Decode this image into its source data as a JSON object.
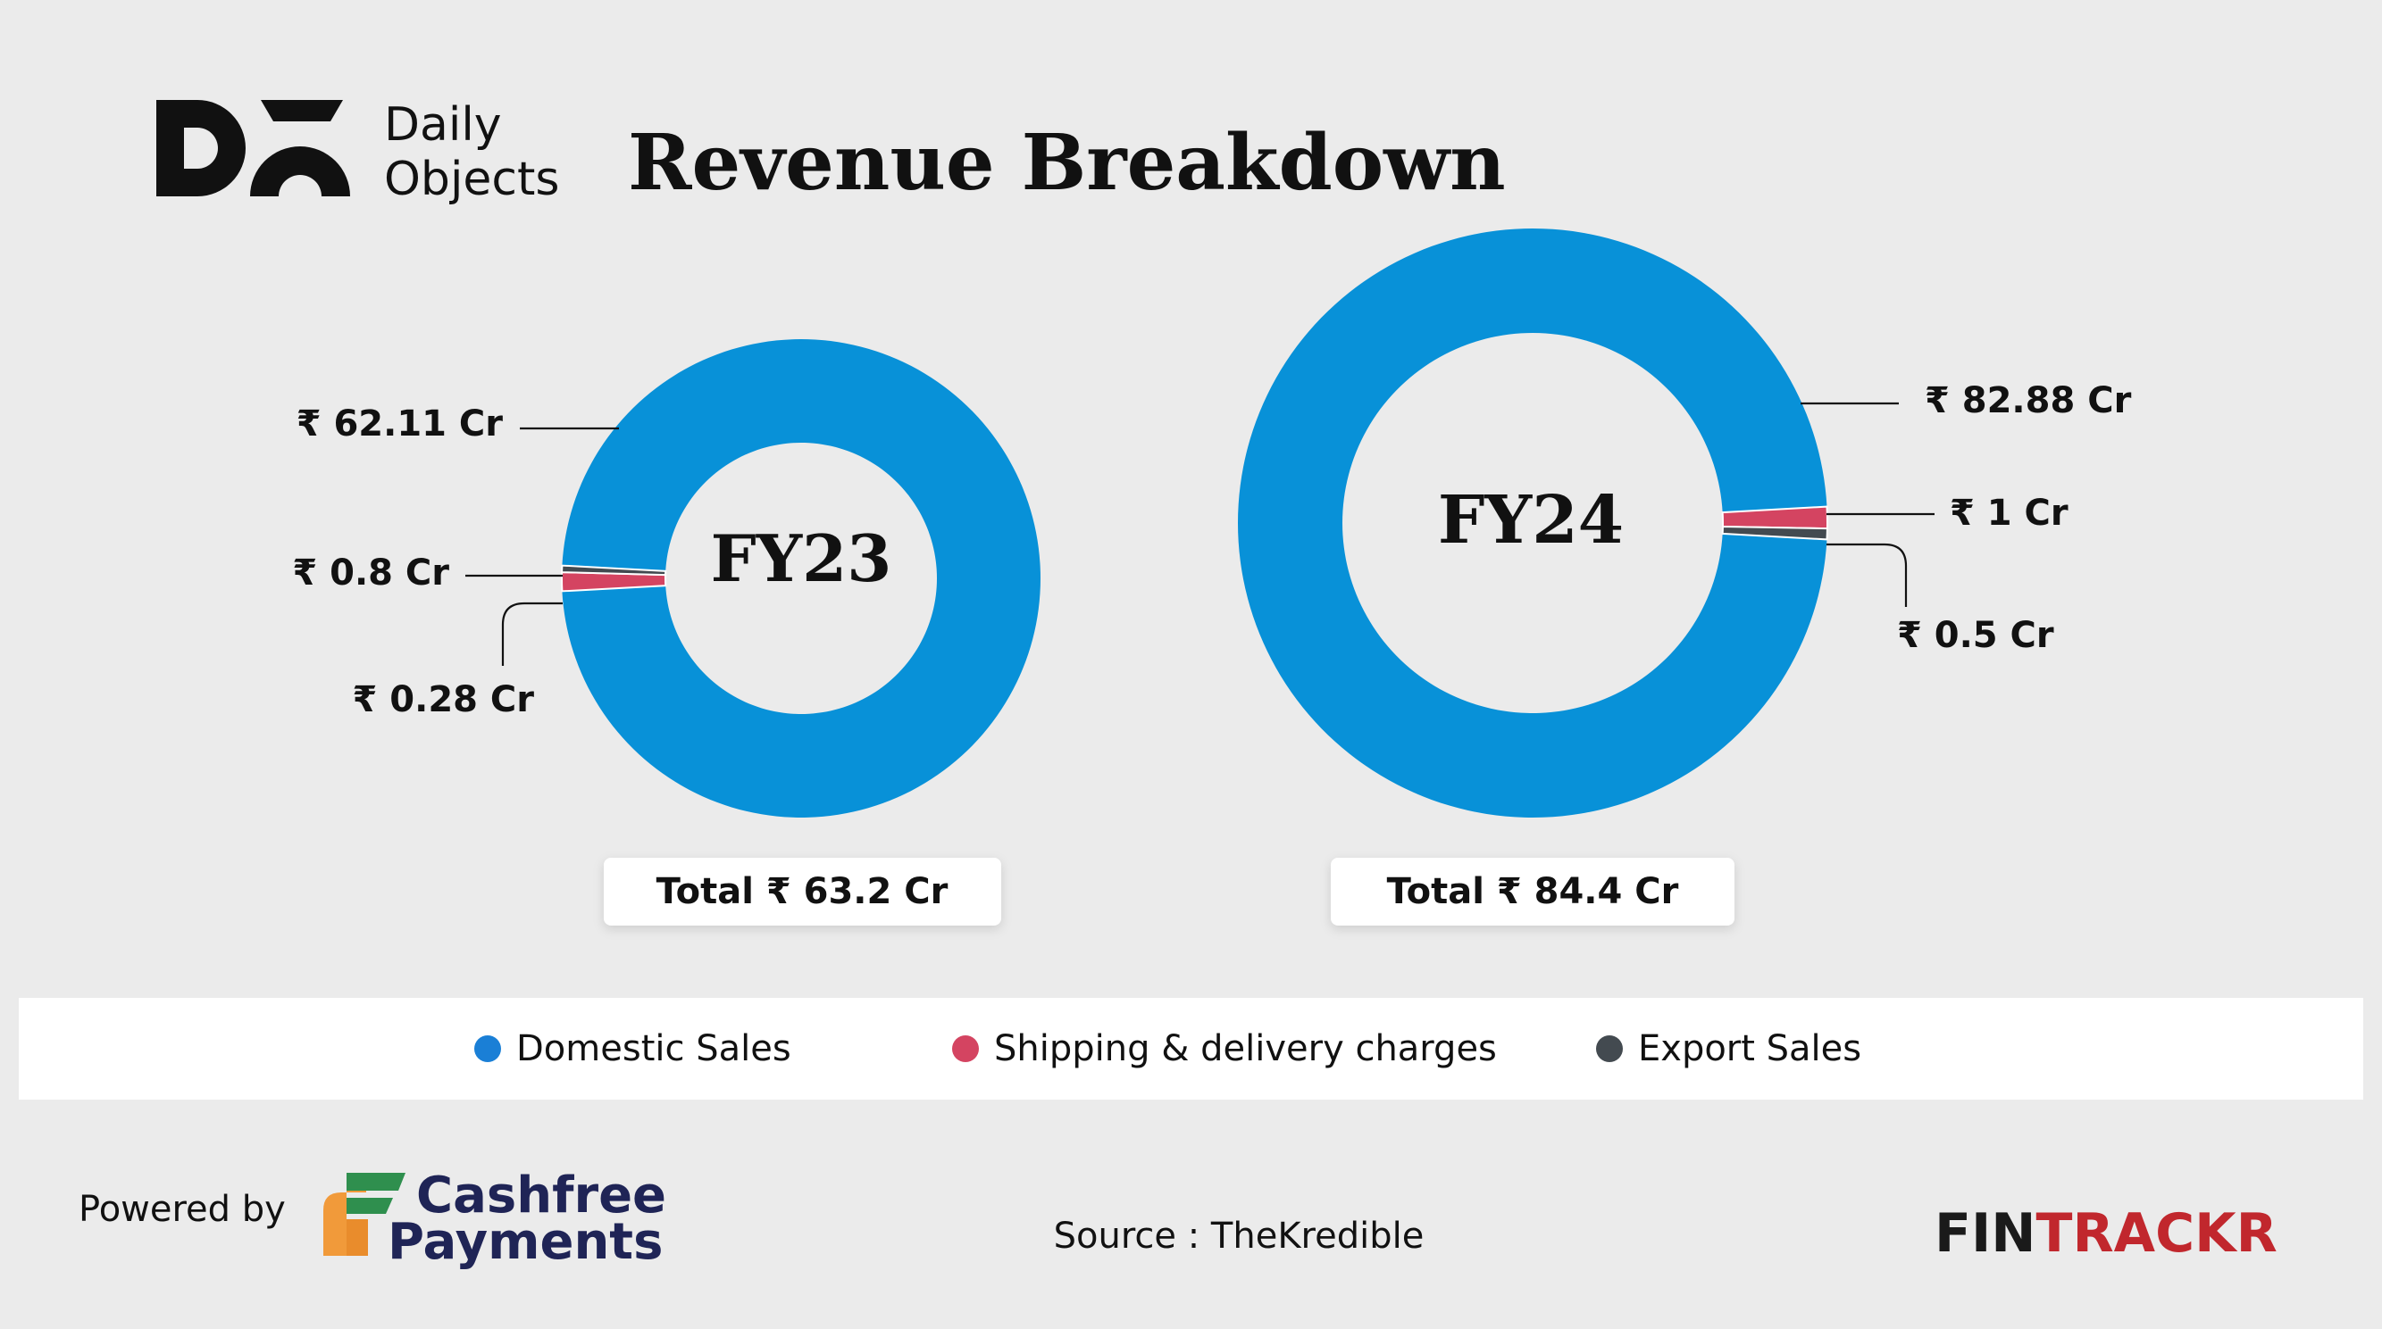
{
  "brand": {
    "logo_line1": "Daily",
    "logo_line2": "Objects"
  },
  "title": "Revenue Breakdown",
  "colors": {
    "domestic": "#0891d8",
    "shipping": "#d44461",
    "export": "#434a50",
    "background": "#ebebeb",
    "fintrackr_red": "#c1272d"
  },
  "chart_data": [
    {
      "type": "pie",
      "center_label": "FY23",
      "categories": [
        "Domestic Sales",
        "Shipping & delivery charges",
        "Export Sales"
      ],
      "values": [
        62.11,
        0.8,
        0.28
      ],
      "value_labels": [
        "₹ 62.11 Cr",
        "₹ 0.8 Cr",
        "₹ 0.28 Cr"
      ],
      "total_label": "Total ₹ 63.2 Cr"
    },
    {
      "type": "pie",
      "center_label": "FY24",
      "categories": [
        "Domestic Sales",
        "Shipping & delivery charges",
        "Export Sales"
      ],
      "values": [
        82.88,
        1,
        0.5
      ],
      "value_labels": [
        "₹ 82.88 Cr",
        "₹ 1 Cr",
        "₹ 0.5 Cr"
      ],
      "total_label": "Total ₹ 84.4 Cr"
    }
  ],
  "legend": [
    {
      "label": "Domestic Sales",
      "color": "#1a7fd6"
    },
    {
      "label": "Shipping & delivery charges",
      "color": "#d44461"
    },
    {
      "label": "Export Sales",
      "color": "#434a50"
    }
  ],
  "footer": {
    "powered_by": "Powered by",
    "cashfree_line1": "Cashfree",
    "cashfree_line2": "Payments",
    "source": "Source : TheKredible",
    "fintrackr_a": "FIN",
    "fintrackr_b": "TRACKR"
  }
}
